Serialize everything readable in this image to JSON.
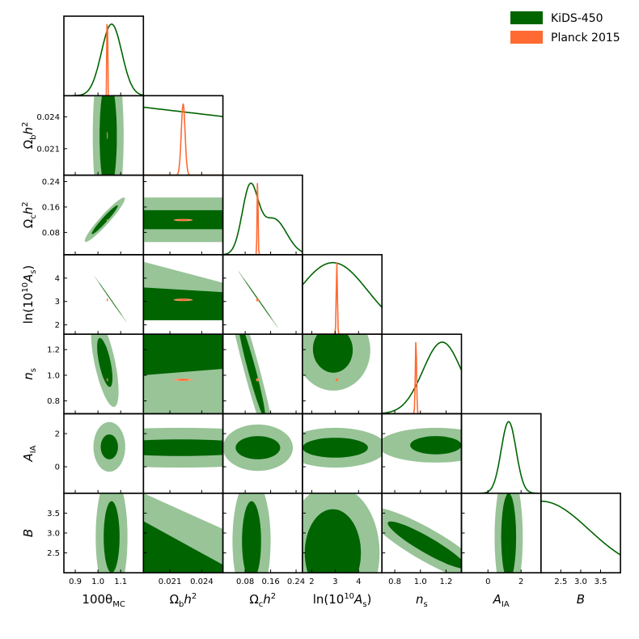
{
  "chart_data": {
    "type": "corner",
    "title": "",
    "parameters": [
      {
        "name": "theta",
        "label": "100θMC",
        "range": [
          0.85,
          1.2
        ],
        "ticks": [
          0.9,
          1.0,
          1.1
        ],
        "tick_labels": [
          "0.9",
          "1.0",
          "1.1"
        ],
        "show_y_axis": false
      },
      {
        "name": "omegab",
        "label": "Ωbh²",
        "range": [
          0.0185,
          0.026
        ],
        "ticks": [
          0.021,
          0.024
        ],
        "tick_labels": [
          "0.021",
          "0.024"
        ]
      },
      {
        "name": "omegac",
        "label": "Ωch²",
        "range": [
          0.01,
          0.26
        ],
        "ticks": [
          0.08,
          0.16,
          0.24
        ],
        "tick_labels": [
          "0.08",
          "0.16",
          "0.24"
        ]
      },
      {
        "name": "lnAs",
        "label": "ln(10¹⁰As)",
        "range": [
          1.6,
          5.0
        ],
        "ticks": [
          2,
          3,
          4
        ],
        "tick_labels": [
          "2",
          "3",
          "4"
        ]
      },
      {
        "name": "ns",
        "label": "ns",
        "range": [
          0.7,
          1.32
        ],
        "ticks": [
          0.8,
          1.0,
          1.2
        ],
        "tick_labels": [
          "0.8",
          "1.0",
          "1.2"
        ],
        "y_tick_labels": [
          "0.8",
          "1.0",
          "1.2"
        ]
      },
      {
        "name": "AIA",
        "label": "AIA",
        "range": [
          -1.6,
          3.2
        ],
        "ticks": [
          0,
          2
        ],
        "tick_labels": [
          "0",
          "2"
        ]
      },
      {
        "name": "B",
        "label": "B",
        "range": [
          2.0,
          4.0
        ],
        "ticks": [
          2.5,
          3.0,
          3.5
        ],
        "tick_labels": [
          "2.5",
          "3.0",
          "3.5"
        ]
      }
    ],
    "axis_labels": {
      "theta": {
        "main": "100θ",
        "sub": "MC",
        "sup": ""
      },
      "omegab": {
        "main": "Ω",
        "sub": "b",
        "mid": "h",
        "sup": "2"
      },
      "omegac": {
        "main": "Ω",
        "sub": "c",
        "mid": "h",
        "sup": "2"
      },
      "lnAs": {
        "main": "ln(10",
        "sup": "10",
        "mid": "A",
        "sub": "s",
        "end": ")"
      },
      "ns": {
        "main": "n",
        "sub": "s"
      },
      "AIA": {
        "main": "A",
        "sub": "IA"
      },
      "B": {
        "main": "B"
      }
    },
    "y_ticks": {
      "omegab": {
        "ticks": [
          0.021,
          0.024
        ],
        "labels": [
          "0.021",
          "0.024"
        ]
      },
      "omegac": {
        "ticks": [
          0.08,
          0.16,
          0.24
        ],
        "labels": [
          "0.08",
          "0.16",
          "0.24"
        ]
      },
      "lnAs": {
        "ticks": [
          2,
          3,
          4
        ],
        "labels": [
          "2",
          "3",
          "4"
        ]
      },
      "ns": {
        "ticks": [
          0.8,
          1.0,
          1.2
        ],
        "labels": [
          "0.8",
          "1.0",
          "1.2"
        ]
      },
      "AIA": {
        "ticks": [
          0,
          2
        ],
        "labels": [
          "0",
          "2"
        ]
      },
      "B": {
        "ticks": [
          2.5,
          3.0,
          3.5
        ],
        "labels": [
          "2.5",
          "3.0",
          "3.5"
        ]
      }
    },
    "series": [
      {
        "name": "KiDS-450",
        "color": "#006400",
        "color_outer": "#98c498",
        "marginals": {
          "theta": {
            "type": "gauss",
            "mu": 1.06,
            "sigma": 0.045
          },
          "omegab": {
            "type": "line",
            "y0": 0.95,
            "y1": 0.82
          },
          "omegac": {
            "type": "mixture",
            "components": [
              [
                0.095,
                0.025,
                1.0
              ],
              [
                0.17,
                0.04,
                0.55
              ]
            ]
          },
          "lnAs": {
            "type": "gauss",
            "mu": 2.9,
            "sigma": 1.5
          },
          "ns": {
            "type": "gauss",
            "mu": 1.17,
            "sigma": 0.15
          },
          "AIA": {
            "type": "gauss",
            "mu": 1.25,
            "sigma": 0.45
          },
          "B": {
            "type": "gauss",
            "mu": 2.0,
            "sigma": 1.2
          }
        },
        "contours": {
          "omegab|theta": {
            "cx": 1.045,
            "cy": 0.0222,
            "a68": 0.038,
            "b68": 0.0055,
            "a95": 0.068,
            "b95": 0.009,
            "angle": 0
          },
          "omegac|theta": {
            "cx": 1.03,
            "cy": 0.12,
            "a68": 0.085,
            "b68": 0.008,
            "a95": 0.13,
            "b95": 0.015,
            "angle": 48
          },
          "lnAs|theta": {
            "cx": 1.055,
            "cy": 3.1,
            "a68": 0.09,
            "b68": 0.012,
            "a95": 0.125,
            "b95": 0.024,
            "angle": -55
          },
          "lnAs|omegac": {
            "cx": 0.12,
            "cy": 3.1,
            "a68": 0.08,
            "b68": 0.014,
            "a95": 0.11,
            "b95": 0.03,
            "angle": -55
          },
          "ns|theta": {
            "cx": 1.03,
            "cy": 1.1,
            "a68": 0.11,
            "b68": 0.045,
            "a95": 0.2,
            "b95": 0.08,
            "angle": -78
          },
          "ns|omegac": {
            "cx": 0.1,
            "cy": 1.05,
            "a68": 0.16,
            "b68": 0.03,
            "a95": 0.3,
            "b95": 0.06,
            "angle": -75
          },
          "ns|lnAs": {
            "cx": 2.9,
            "cy": 1.2,
            "a68": 0.85,
            "b68": 0.18,
            "a95": 1.6,
            "b95": 0.32,
            "angle": 5
          },
          "AIA|theta": {
            "cx": 1.05,
            "cy": 1.2,
            "a68": 0.038,
            "b68": 0.75,
            "a95": 0.07,
            "b95": 1.5,
            "angle": 0
          },
          "AIA|omegab": {
            "cx": 0.022,
            "cy": 1.15,
            "a68": 0.008,
            "b68": 0.5,
            "a95": 0.014,
            "b95": 1.2,
            "angle": 0
          },
          "AIA|omegac": {
            "cx": 0.12,
            "cy": 1.15,
            "a68": 0.07,
            "b68": 0.7,
            "a95": 0.11,
            "b95": 1.4,
            "angle": 0
          },
          "AIA|lnAs": {
            "cx": 3.0,
            "cy": 1.15,
            "a68": 1.4,
            "b68": 0.6,
            "a95": 2.2,
            "b95": 1.2,
            "angle": 0
          },
          "AIA|ns": {
            "cx": 1.12,
            "cy": 1.3,
            "a68": 0.2,
            "b68": 0.55,
            "a95": 0.45,
            "b95": 1.05,
            "angle": 0
          },
          "B|theta": {
            "cx": 1.06,
            "cy": 2.9,
            "a68": 0.035,
            "b68": 0.9,
            "a95": 0.07,
            "b95": 1.6,
            "angle": 0
          },
          "B|omegac": {
            "cx": 0.1,
            "cy": 2.8,
            "a68": 0.03,
            "b68": 1.0,
            "a95": 0.06,
            "b95": 1.6,
            "angle": 0
          },
          "B|lnAs": {
            "cx": 2.9,
            "cy": 2.5,
            "a68": 1.2,
            "b68": 1.1,
            "a95": 2.0,
            "b95": 1.7,
            "angle": 0
          },
          "B|ns": {
            "cx": 1.05,
            "cy": 2.7,
            "a68": 0.35,
            "b68": 0.2,
            "a95": 0.55,
            "b95": 0.4,
            "angle": -30
          },
          "B|AIA": {
            "cx": 1.25,
            "cy": 2.9,
            "a68": 0.45,
            "b68": 1.1,
            "a95": 0.85,
            "b95": 1.7,
            "angle": 0
          }
        },
        "bands": {
          "lnAs|omegab": {
            "outer": [
              [
                2.2,
                4.7
              ],
              [
                2.2,
                3.8
              ]
            ],
            "inner": [
              [
                2.2,
                3.6
              ],
              [
                2.2,
                3.4
              ]
            ]
          },
          "ns|omegab": {
            "outer": [
              [
                0.7,
                1.32
              ],
              [
                0.7,
                1.32
              ]
            ],
            "inner": [
              [
                1.0,
                1.32
              ],
              [
                1.05,
                1.32
              ]
            ]
          },
          "omegac|omegab": {
            "outer": [
              [
                0.05,
                0.19
              ],
              [
                0.05,
                0.19
              ]
            ],
            "inner": [
              [
                0.09,
                0.15
              ],
              [
                0.09,
                0.15
              ]
            ]
          },
          "B|omegab": {
            "outer": [
              [
                2.0,
                4.0
              ],
              [
                2.0,
                3.1
              ]
            ],
            "inner": [
              [
                2.0,
                3.3
              ],
              [
                2.0,
                2.2
              ]
            ]
          }
        }
      },
      {
        "name": "Planck 2015",
        "color": "#ff6a33",
        "color_outer": "#ff9a6b",
        "marginals": {
          "theta": {
            "type": "gauss",
            "mu": 1.041,
            "sigma": 0.0012
          },
          "omegab": {
            "type": "gauss",
            "mu": 0.02225,
            "sigma": 0.00018
          },
          "omegac": {
            "type": "gauss",
            "mu": 0.119,
            "sigma": 0.0015
          },
          "lnAs": {
            "type": "gauss",
            "mu": 3.07,
            "sigma": 0.025
          },
          "ns": {
            "type": "gauss",
            "mu": 0.965,
            "sigma": 0.005
          }
        },
        "contours": {
          "omegab|theta": {
            "cx": 1.041,
            "cy": 0.02225,
            "a68": 0.001,
            "b68": 0.00016,
            "a95": 0.002,
            "b95": 0.00035,
            "angle": 0
          },
          "omegac|omegab": {
            "cx": 0.02225,
            "cy": 0.119,
            "a68": 0.0005,
            "b68": 0.002,
            "a95": 0.0009,
            "b95": 0.0035,
            "angle": 0
          },
          "lnAs|omegab": {
            "cx": 0.02225,
            "cy": 3.07,
            "a68": 0.0005,
            "b68": 0.03,
            "a95": 0.0009,
            "b95": 0.05,
            "angle": 0
          },
          "ns|omegab": {
            "cx": 0.02225,
            "cy": 0.965,
            "a68": 0.0005,
            "b68": 0.006,
            "a95": 0.0009,
            "b95": 0.01,
            "angle": 0
          },
          "omegac|theta": {
            "cx": 1.041,
            "cy": 0.119,
            "a68": 0.002,
            "b68": 0.002,
            "a95": 0.003,
            "b95": 0.003,
            "angle": 0
          },
          "lnAs|theta": {
            "cx": 1.041,
            "cy": 3.07,
            "a68": 0.002,
            "b68": 0.05,
            "a95": 0.003,
            "b95": 0.07,
            "angle": 0
          },
          "lnAs|omegac": {
            "cx": 0.119,
            "cy": 3.07,
            "a68": 0.003,
            "b68": 0.05,
            "a95": 0.005,
            "b95": 0.07,
            "angle": 0
          },
          "ns|omegac": {
            "cx": 0.119,
            "cy": 0.965,
            "a68": 0.003,
            "b68": 0.008,
            "a95": 0.005,
            "b95": 0.012,
            "angle": 0
          },
          "ns|lnAs": {
            "cx": 3.07,
            "cy": 0.965,
            "a68": 0.05,
            "b68": 0.008,
            "a95": 0.08,
            "b95": 0.012,
            "angle": 0
          },
          "ns|theta": {
            "cx": 1.041,
            "cy": 0.965,
            "a68": 0.002,
            "b68": 0.008,
            "a95": 0.003,
            "b95": 0.012,
            "angle": 0
          }
        }
      }
    ],
    "legend": {
      "placement": "top-right",
      "entries": [
        {
          "label": "KiDS-450",
          "color": "#006400"
        },
        {
          "label": "Planck 2015",
          "color": "#ff6a33"
        }
      ]
    }
  }
}
